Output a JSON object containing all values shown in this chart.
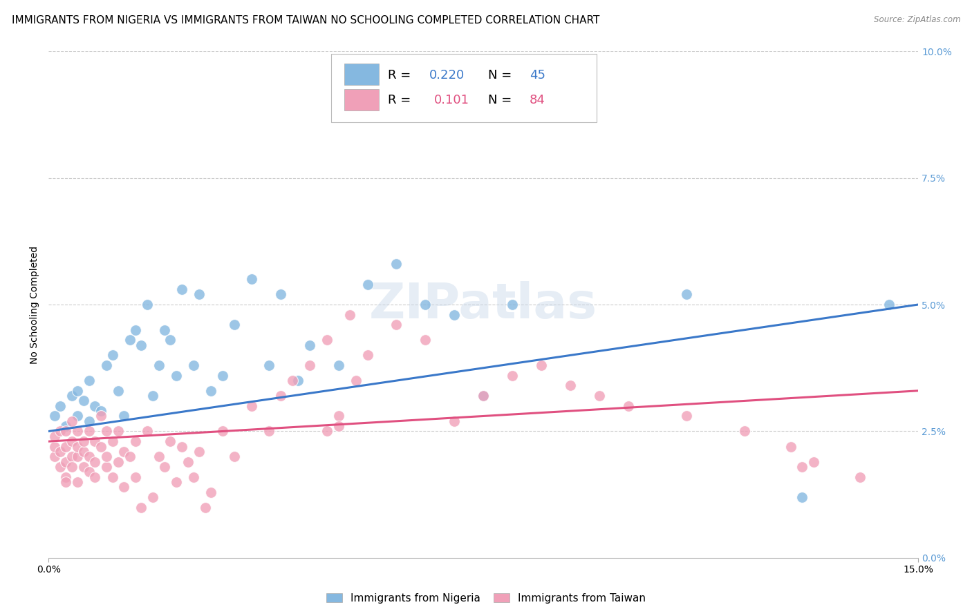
{
  "title": "IMMIGRANTS FROM NIGERIA VS IMMIGRANTS FROM TAIWAN NO SCHOOLING COMPLETED CORRELATION CHART",
  "source": "Source: ZipAtlas.com",
  "ylabel": "No Schooling Completed",
  "xlim": [
    0.0,
    0.15
  ],
  "ylim": [
    0.0,
    0.1
  ],
  "xtick_vals": [
    0.0,
    0.15
  ],
  "xtick_labels": [
    "0.0%",
    "15.0%"
  ],
  "ytick_vals": [
    0.0,
    0.025,
    0.05,
    0.075,
    0.1
  ],
  "ytick_labels": [
    "0.0%",
    "2.5%",
    "5.0%",
    "7.5%",
    "10.0%"
  ],
  "nigeria_color": "#85b8e0",
  "taiwan_color": "#f0a0b8",
  "nigeria_line_color": "#3a78c9",
  "taiwan_line_color": "#e05080",
  "nigeria_R": 0.22,
  "nigeria_N": 45,
  "taiwan_R": 0.101,
  "taiwan_N": 84,
  "nigeria_scatter_x": [
    0.001,
    0.002,
    0.003,
    0.004,
    0.005,
    0.005,
    0.006,
    0.007,
    0.007,
    0.008,
    0.009,
    0.01,
    0.011,
    0.012,
    0.013,
    0.014,
    0.015,
    0.016,
    0.017,
    0.018,
    0.019,
    0.02,
    0.021,
    0.022,
    0.023,
    0.025,
    0.026,
    0.028,
    0.03,
    0.032,
    0.035,
    0.038,
    0.04,
    0.043,
    0.045,
    0.05,
    0.055,
    0.06,
    0.065,
    0.07,
    0.075,
    0.08,
    0.11,
    0.13,
    0.145
  ],
  "nigeria_scatter_y": [
    0.028,
    0.03,
    0.026,
    0.032,
    0.028,
    0.033,
    0.031,
    0.027,
    0.035,
    0.03,
    0.029,
    0.038,
    0.04,
    0.033,
    0.028,
    0.043,
    0.045,
    0.042,
    0.05,
    0.032,
    0.038,
    0.045,
    0.043,
    0.036,
    0.053,
    0.038,
    0.052,
    0.033,
    0.036,
    0.046,
    0.055,
    0.038,
    0.052,
    0.035,
    0.042,
    0.038,
    0.054,
    0.058,
    0.05,
    0.048,
    0.032,
    0.05,
    0.052,
    0.012,
    0.05
  ],
  "taiwan_scatter_x": [
    0.001,
    0.001,
    0.001,
    0.002,
    0.002,
    0.002,
    0.003,
    0.003,
    0.003,
    0.003,
    0.003,
    0.004,
    0.004,
    0.004,
    0.004,
    0.005,
    0.005,
    0.005,
    0.005,
    0.006,
    0.006,
    0.006,
    0.007,
    0.007,
    0.007,
    0.008,
    0.008,
    0.008,
    0.009,
    0.009,
    0.01,
    0.01,
    0.01,
    0.011,
    0.011,
    0.012,
    0.012,
    0.013,
    0.013,
    0.014,
    0.015,
    0.015,
    0.016,
    0.017,
    0.018,
    0.019,
    0.02,
    0.021,
    0.022,
    0.023,
    0.024,
    0.025,
    0.026,
    0.027,
    0.028,
    0.03,
    0.032,
    0.035,
    0.038,
    0.04,
    0.042,
    0.045,
    0.048,
    0.05,
    0.053,
    0.055,
    0.06,
    0.065,
    0.07,
    0.075,
    0.08,
    0.085,
    0.09,
    0.095,
    0.1,
    0.11,
    0.12,
    0.128,
    0.132,
    0.14,
    0.048,
    0.05,
    0.052,
    0.13
  ],
  "taiwan_scatter_y": [
    0.02,
    0.022,
    0.024,
    0.018,
    0.021,
    0.025,
    0.016,
    0.019,
    0.022,
    0.025,
    0.015,
    0.02,
    0.023,
    0.018,
    0.027,
    0.02,
    0.015,
    0.025,
    0.022,
    0.018,
    0.021,
    0.023,
    0.02,
    0.025,
    0.017,
    0.019,
    0.023,
    0.016,
    0.022,
    0.028,
    0.018,
    0.025,
    0.02,
    0.016,
    0.023,
    0.019,
    0.025,
    0.021,
    0.014,
    0.02,
    0.016,
    0.023,
    0.01,
    0.025,
    0.012,
    0.02,
    0.018,
    0.023,
    0.015,
    0.022,
    0.019,
    0.016,
    0.021,
    0.01,
    0.013,
    0.025,
    0.02,
    0.03,
    0.025,
    0.032,
    0.035,
    0.038,
    0.043,
    0.028,
    0.035,
    0.04,
    0.046,
    0.043,
    0.027,
    0.032,
    0.036,
    0.038,
    0.034,
    0.032,
    0.03,
    0.028,
    0.025,
    0.022,
    0.019,
    0.016,
    0.025,
    0.026,
    0.048,
    0.018
  ],
  "nigeria_trend_x": [
    0.0,
    0.15
  ],
  "nigeria_trend_y": [
    0.025,
    0.05
  ],
  "taiwan_trend_x": [
    0.0,
    0.15
  ],
  "taiwan_trend_y": [
    0.023,
    0.033
  ],
  "grid_line_y": [
    0.025,
    0.05,
    0.075,
    0.1
  ],
  "background_color": "#ffffff",
  "grid_color": "#cccccc",
  "title_fontsize": 11,
  "axis_label_fontsize": 10,
  "tick_fontsize": 10,
  "right_tick_color": "#5b9bd5",
  "watermark": "ZIPatlas"
}
